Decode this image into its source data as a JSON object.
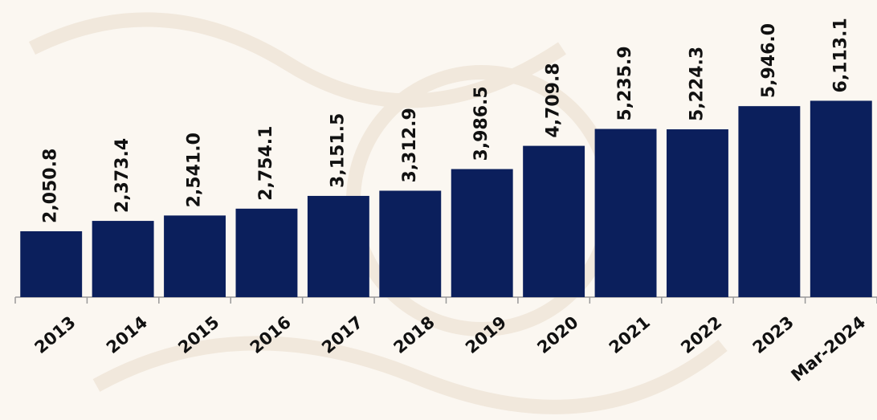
{
  "chart_data": {
    "type": "bar",
    "categories": [
      "2013",
      "2014",
      "2015",
      "2016",
      "2017",
      "2018",
      "2019",
      "2020",
      "2021",
      "2022",
      "2023",
      "Mar-2024"
    ],
    "values": [
      2050.8,
      2373.4,
      2541.0,
      2754.1,
      3151.5,
      3312.9,
      3986.5,
      4709.8,
      5235.9,
      5224.3,
      5946.0,
      6113.1
    ],
    "value_labels": [
      "2,050.8",
      "2,373.4",
      "2,541.0",
      "2,754.1",
      "3,151.5",
      "3,312.9",
      "3,986.5",
      "4,709.8",
      "5,235.9",
      "5,224.3",
      "5,946.0",
      "6,113.1"
    ],
    "color": "#0b1f5c",
    "ylim": [
      0,
      9250
    ]
  }
}
